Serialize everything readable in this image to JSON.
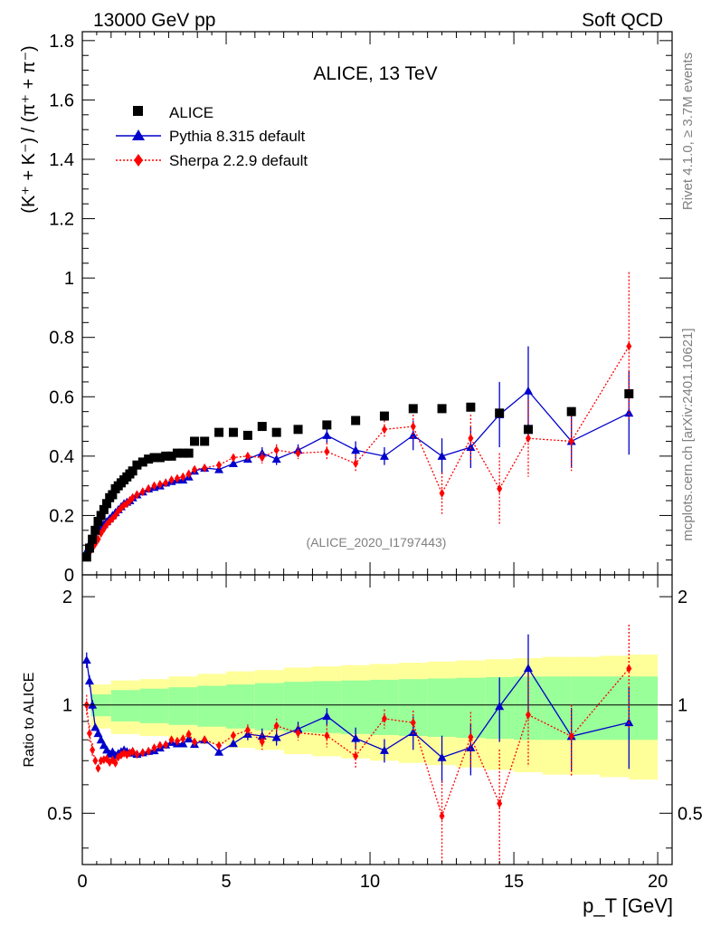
{
  "header": {
    "left": "13000 GeV pp",
    "right": "Soft QCD"
  },
  "side_labels": {
    "rivet": "Rivet 4.1.0, ≥ 3.7M events",
    "mcplots": "mcplots.cern.ch [arXiv:2401.10621]"
  },
  "chart_data": {
    "type": "scatter",
    "title": "ALICE, 13 TeV",
    "analysis_label": "(ALICE_2020_I1797443)",
    "xlabel": "p_T [GeV]",
    "ylabel": "(K⁺ + K⁻) / (π⁺ + π⁻)",
    "ratio_ylabel": "Ratio to ALICE",
    "xlim": [
      0,
      20.5
    ],
    "ylim": [
      0,
      1.83
    ],
    "ratio_ylim": [
      0.36,
      2.3
    ],
    "x_ticks": [
      0,
      5,
      10,
      15,
      20
    ],
    "y_ticks": [
      0,
      0.2,
      0.4,
      0.6,
      0.8,
      1,
      1.2,
      1.4,
      1.6,
      1.8
    ],
    "y_tick_labels": [
      "0",
      "0.2",
      "0.4",
      "0.6",
      "0.8",
      "1",
      "1.2",
      "1.4",
      "1.6",
      "1.8"
    ],
    "ratio_y_ticks": [
      0.5,
      1,
      2
    ],
    "ratio_y_tick_labels": [
      "0.5",
      "1",
      "2"
    ],
    "series": [
      {
        "name": "ALICE",
        "color": "#000000",
        "marker": "square",
        "x": [
          0.15,
          0.25,
          0.35,
          0.45,
          0.55,
          0.65,
          0.75,
          0.85,
          0.95,
          1.05,
          1.15,
          1.25,
          1.35,
          1.45,
          1.55,
          1.65,
          1.75,
          1.9,
          2.1,
          2.3,
          2.5,
          2.7,
          2.9,
          3.1,
          3.3,
          3.5,
          3.7,
          3.9,
          4.25,
          4.75,
          5.25,
          5.75,
          6.25,
          6.75,
          7.5,
          8.5,
          9.5,
          10.5,
          11.5,
          12.5,
          13.5,
          14.5,
          15.5,
          17.0,
          19.0
        ],
        "y": [
          0.06,
          0.09,
          0.12,
          0.15,
          0.18,
          0.2,
          0.22,
          0.24,
          0.26,
          0.27,
          0.29,
          0.3,
          0.31,
          0.32,
          0.33,
          0.34,
          0.35,
          0.37,
          0.38,
          0.39,
          0.395,
          0.395,
          0.4,
          0.4,
          0.41,
          0.41,
          0.41,
          0.45,
          0.45,
          0.48,
          0.48,
          0.47,
          0.5,
          0.48,
          0.49,
          0.505,
          0.52,
          0.535,
          0.56,
          0.56,
          0.565,
          0.545,
          0.49,
          0.55,
          0.61
        ]
      },
      {
        "name": "Pythia 8.315 default",
        "color": "#0000cc",
        "marker": "triangle",
        "x": [
          0.15,
          0.25,
          0.35,
          0.45,
          0.55,
          0.65,
          0.75,
          0.85,
          0.95,
          1.05,
          1.15,
          1.25,
          1.35,
          1.45,
          1.55,
          1.65,
          1.75,
          1.9,
          2.1,
          2.3,
          2.5,
          2.7,
          2.9,
          3.1,
          3.3,
          3.5,
          3.7,
          3.9,
          4.25,
          4.75,
          5.25,
          5.75,
          6.25,
          6.75,
          7.5,
          8.5,
          9.5,
          10.5,
          11.5,
          12.5,
          13.5,
          14.5,
          15.5,
          17.0,
          19.0
        ],
        "y": [
          0.08,
          0.105,
          0.12,
          0.13,
          0.15,
          0.16,
          0.17,
          0.18,
          0.19,
          0.2,
          0.21,
          0.22,
          0.23,
          0.24,
          0.245,
          0.25,
          0.26,
          0.27,
          0.28,
          0.29,
          0.295,
          0.3,
          0.31,
          0.315,
          0.32,
          0.32,
          0.33,
          0.35,
          0.36,
          0.355,
          0.375,
          0.39,
          0.41,
          0.39,
          0.42,
          0.47,
          0.42,
          0.4,
          0.47,
          0.4,
          0.43,
          0.54,
          0.62,
          0.45,
          0.545
        ],
        "yerr": [
          0.004,
          0.004,
          0.004,
          0.004,
          0.004,
          0.004,
          0.004,
          0.004,
          0.004,
          0.004,
          0.004,
          0.004,
          0.004,
          0.004,
          0.004,
          0.004,
          0.004,
          0.004,
          0.005,
          0.005,
          0.005,
          0.005,
          0.006,
          0.006,
          0.006,
          0.006,
          0.007,
          0.007,
          0.008,
          0.01,
          0.012,
          0.015,
          0.02,
          0.02,
          0.02,
          0.025,
          0.03,
          0.03,
          0.05,
          0.06,
          0.07,
          0.11,
          0.15,
          0.09,
          0.14
        ]
      },
      {
        "name": "Sherpa 2.2.9 default",
        "color": "#ff0000",
        "marker": "diamond",
        "x": [
          0.15,
          0.25,
          0.35,
          0.45,
          0.55,
          0.65,
          0.75,
          0.85,
          0.95,
          1.05,
          1.15,
          1.25,
          1.35,
          1.45,
          1.55,
          1.65,
          1.75,
          1.9,
          2.1,
          2.3,
          2.5,
          2.7,
          2.9,
          3.1,
          3.3,
          3.5,
          3.7,
          3.9,
          4.25,
          4.75,
          5.25,
          5.75,
          6.25,
          6.75,
          7.5,
          8.5,
          9.5,
          10.5,
          11.5,
          12.5,
          13.5,
          14.5,
          15.5,
          17.0,
          19.0
        ],
        "y": [
          0.06,
          0.075,
          0.09,
          0.105,
          0.12,
          0.14,
          0.155,
          0.17,
          0.18,
          0.19,
          0.2,
          0.215,
          0.225,
          0.235,
          0.24,
          0.25,
          0.26,
          0.27,
          0.28,
          0.29,
          0.3,
          0.305,
          0.31,
          0.32,
          0.325,
          0.33,
          0.34,
          0.355,
          0.36,
          0.37,
          0.395,
          0.4,
          0.395,
          0.42,
          0.41,
          0.415,
          0.375,
          0.49,
          0.5,
          0.275,
          0.46,
          0.29,
          0.46,
          0.45,
          0.77
        ],
        "yerr": [
          0.004,
          0.004,
          0.004,
          0.004,
          0.004,
          0.004,
          0.004,
          0.004,
          0.004,
          0.004,
          0.004,
          0.004,
          0.004,
          0.004,
          0.004,
          0.004,
          0.004,
          0.005,
          0.005,
          0.005,
          0.005,
          0.006,
          0.006,
          0.006,
          0.006,
          0.007,
          0.007,
          0.007,
          0.008,
          0.01,
          0.012,
          0.015,
          0.02,
          0.02,
          0.02,
          0.03,
          0.03,
          0.03,
          0.04,
          0.07,
          0.08,
          0.12,
          0.13,
          0.1,
          0.25
        ]
      }
    ],
    "ratio_band": {
      "x_edges": [
        0.3,
        1.0,
        2.0,
        3.0,
        4.0,
        5.0,
        6.0,
        7.0,
        8.0,
        9.0,
        10.0,
        11.0,
        12.0,
        13.0,
        14.0,
        15.0,
        16.0,
        17.0,
        18.0,
        19.0,
        20.0
      ],
      "inner_half": [
        0.07,
        0.1,
        0.11,
        0.12,
        0.13,
        0.14,
        0.15,
        0.16,
        0.165,
        0.17,
        0.175,
        0.18,
        0.185,
        0.19,
        0.195,
        0.2,
        0.2,
        0.2,
        0.2,
        0.2,
        0.2
      ],
      "outer_half": [
        0.14,
        0.17,
        0.18,
        0.2,
        0.22,
        0.24,
        0.25,
        0.27,
        0.28,
        0.29,
        0.3,
        0.31,
        0.32,
        0.33,
        0.34,
        0.35,
        0.36,
        0.36,
        0.37,
        0.38,
        0.38
      ],
      "inner_color": "#99ff99",
      "outer_color": "#ffff99"
    }
  }
}
